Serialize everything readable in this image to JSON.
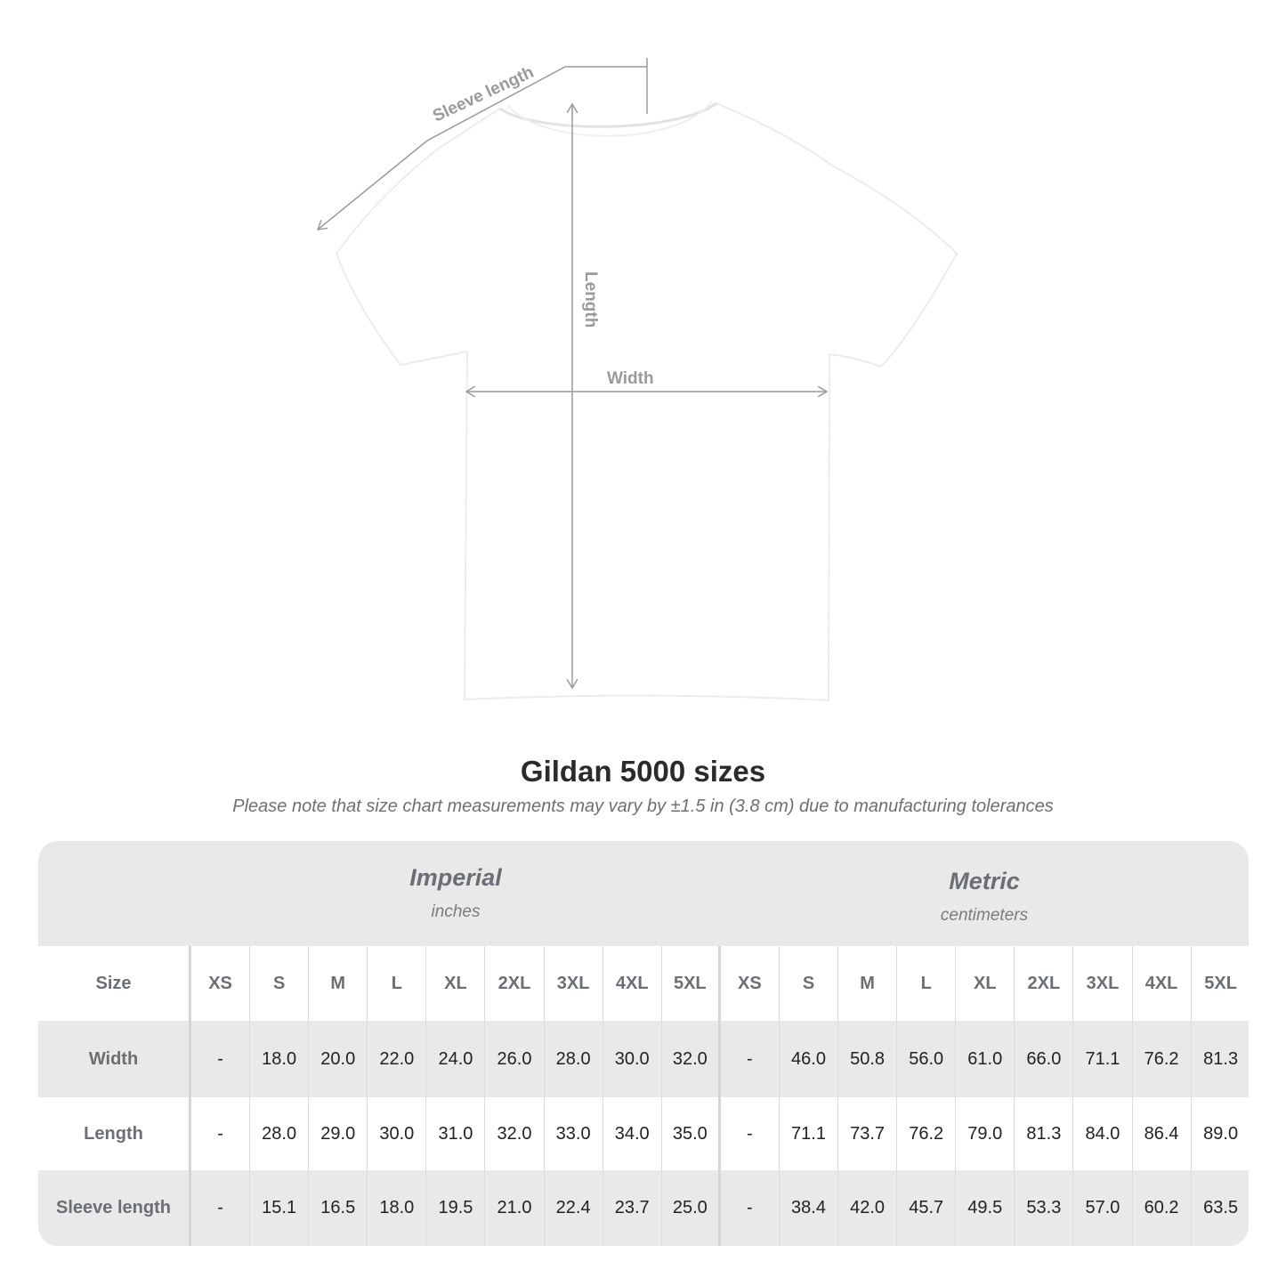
{
  "diagram": {
    "labels": {
      "sleeve": "Sleeve length",
      "length": "Length",
      "width": "Width"
    },
    "shirt_color": "#ffffff",
    "line_color": "#9a9a9a"
  },
  "title": "Gildan 5000 sizes",
  "note": "Please note that size chart measurements may vary by ±1.5 in (3.8 cm) due to manufacturing tolerances",
  "table": {
    "imperial": {
      "label": "Imperial",
      "unit": "inches"
    },
    "metric": {
      "label": "Metric",
      "unit": "centimeters"
    },
    "size_label": "Size",
    "sizes": [
      "XS",
      "S",
      "M",
      "L",
      "XL",
      "2XL",
      "3XL",
      "4XL",
      "5XL"
    ],
    "rows": [
      {
        "label": "Width",
        "imperial": [
          "-",
          "18.0",
          "20.0",
          "22.0",
          "24.0",
          "26.0",
          "28.0",
          "30.0",
          "32.0"
        ],
        "metric": [
          "-",
          "46.0",
          "50.8",
          "56.0",
          "61.0",
          "66.0",
          "71.1",
          "76.2",
          "81.3"
        ]
      },
      {
        "label": "Length",
        "imperial": [
          "-",
          "28.0",
          "29.0",
          "30.0",
          "31.0",
          "32.0",
          "33.0",
          "34.0",
          "35.0"
        ],
        "metric": [
          "-",
          "71.1",
          "73.7",
          "76.2",
          "79.0",
          "81.3",
          "84.0",
          "86.4",
          "89.0"
        ]
      },
      {
        "label": "Sleeve length",
        "imperial": [
          "-",
          "15.1",
          "16.5",
          "18.0",
          "19.5",
          "21.0",
          "22.4",
          "23.7",
          "25.0"
        ],
        "metric": [
          "-",
          "38.4",
          "42.0",
          "45.7",
          "49.5",
          "53.3",
          "57.0",
          "60.2",
          "63.5"
        ]
      }
    ]
  }
}
